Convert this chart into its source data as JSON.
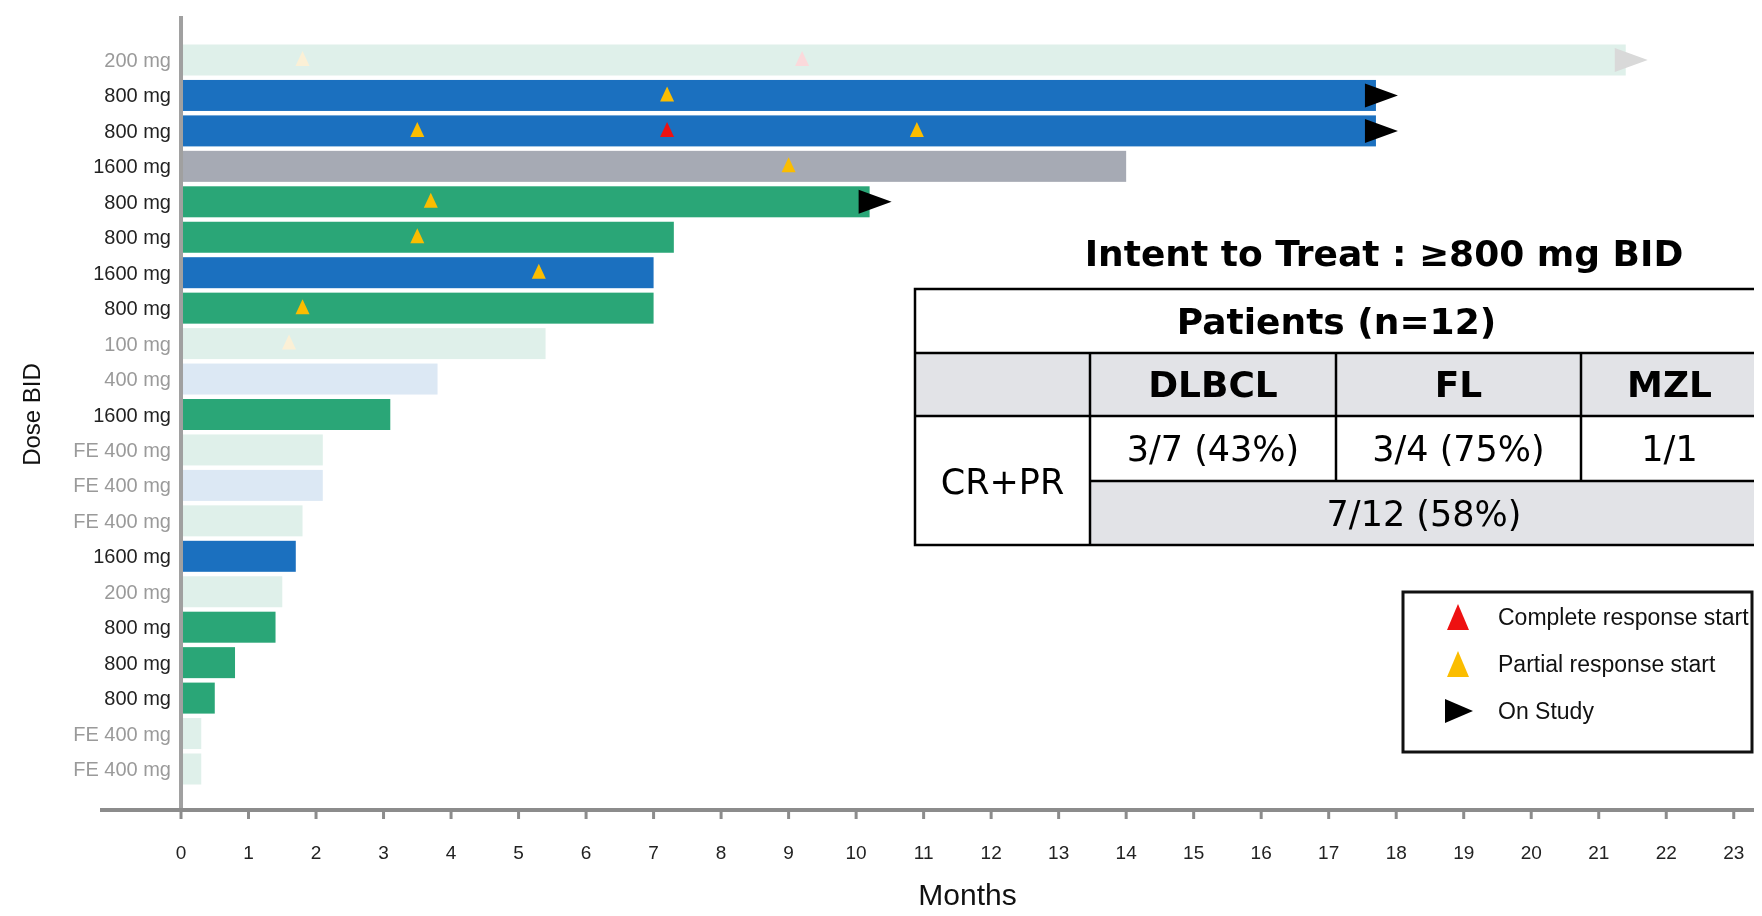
{
  "chart_data": [
    {
      "type": "bar",
      "orientation": "horizontal",
      "xlabel": "Months",
      "ylabel": "Dose BID",
      "categories": [
        "200 mg",
        "800 mg",
        "800 mg",
        "1600 mg",
        "800 mg",
        "800 mg",
        "1600 mg",
        "800 mg",
        "100 mg",
        "400 mg",
        "1600 mg",
        "FE 400 mg",
        "FE 400 mg",
        "FE 400 mg",
        "1600 mg",
        "200 mg",
        "800 mg",
        "800 mg",
        "800 mg",
        "FE 400 mg",
        "FE 400 mg"
      ],
      "xlim": [
        -1.2,
        23.3
      ],
      "xticks": [
        0,
        1,
        2,
        3,
        4,
        5,
        6,
        7,
        8,
        9,
        10,
        11,
        12,
        13,
        14,
        15,
        16,
        17,
        18,
        19,
        20,
        21,
        22,
        23
      ],
      "grid": false,
      "legend": "bottom right",
      "series": [
        {
          "type": "bar",
          "values": [
            21.4,
            17.7,
            17.7,
            14.0,
            10.2,
            7.3,
            7.0,
            7.0,
            5.4,
            3.8,
            3.1,
            2.1,
            2.1,
            1.8,
            1.7,
            1.5,
            1.4,
            0.8,
            0.5,
            0.3,
            0.3
          ],
          "colors": [
            "#dff0ea",
            "#1b70bf",
            "#1b70bf",
            "#a6aab4",
            "#2aa677",
            "#2aa677",
            "#1b70bf",
            "#2aa677",
            "#dff0ea",
            "#dce8f4",
            "#2aa677",
            "#dff0ea",
            "#dce8f4",
            "#dff0ea",
            "#1b70bf",
            "#dff0ea",
            "#2aa677",
            "#2aa677",
            "#2aa677",
            "#dff0ea",
            "#dff0ea"
          ]
        },
        {
          "type": "scatter",
          "name": "Complete response start",
          "color": "#ee1111",
          "marker": "triangle",
          "values": [
            9.2,
            null,
            7.2,
            null,
            null,
            null,
            null,
            null,
            null,
            null,
            null,
            null,
            null,
            null,
            null,
            null,
            null,
            null,
            null,
            null,
            null
          ],
          "colors": [
            "#fbd9db",
            null,
            "#ee1111",
            null,
            null,
            null,
            null,
            null,
            null,
            null,
            null,
            null,
            null,
            null,
            null,
            null,
            null,
            null,
            null,
            null,
            null
          ]
        },
        {
          "type": "scatter",
          "name": "Partial response start",
          "color": "#fbbd00",
          "marker": "triangle",
          "values": [
            1.8,
            7.2,
            3.5,
            9.0,
            3.7,
            3.5,
            5.3,
            1.8,
            1.6,
            null,
            null,
            null,
            null,
            null,
            null,
            null,
            null,
            null,
            null,
            null,
            null
          ],
          "colors": [
            "#fbf0d6",
            "#fbbd00",
            "#fbbd00",
            "#fbbd00",
            "#fbbd00",
            "#fbbd00",
            "#fbbd00",
            "#fbbd00",
            "#fbf0d6",
            null,
            null,
            null,
            null,
            null,
            null,
            null,
            null,
            null,
            null,
            null,
            null
          ]
        },
        {
          "type": "scatter",
          "color": "#fbbd00",
          "marker": "triangle",
          "values": [
            null,
            null,
            10.9,
            null,
            null,
            null,
            null,
            null,
            null,
            null,
            null,
            null,
            null,
            null,
            null,
            null,
            null,
            null,
            null,
            null,
            null
          ]
        },
        {
          "type": "scatter",
          "name": "On Study",
          "color": "#000000",
          "marker": "triangle",
          "values": [
            21.4,
            17.7,
            17.7,
            null,
            10.2,
            null,
            null,
            null,
            null,
            null,
            null,
            null,
            null,
            null,
            null,
            null,
            null,
            null,
            null,
            null,
            null
          ],
          "colors": [
            "#d9d9d9",
            "#000000",
            "#000000",
            null,
            "#000000",
            null,
            null,
            null,
            null,
            null,
            null,
            null,
            null,
            null,
            null,
            null,
            null,
            null,
            null,
            null,
            null
          ]
        }
      ]
    },
    {
      "type": "other",
      "title": "Intent to Treat : ≥800 mg BID",
      "annotations": [
        "Patients (n=12)",
        "DLBCL",
        "FL",
        "MZL",
        "CR+PR",
        "3/7 (43%)",
        "3/4 (75%)",
        "1/1",
        "7/12 (58%)"
      ]
    }
  ]
}
